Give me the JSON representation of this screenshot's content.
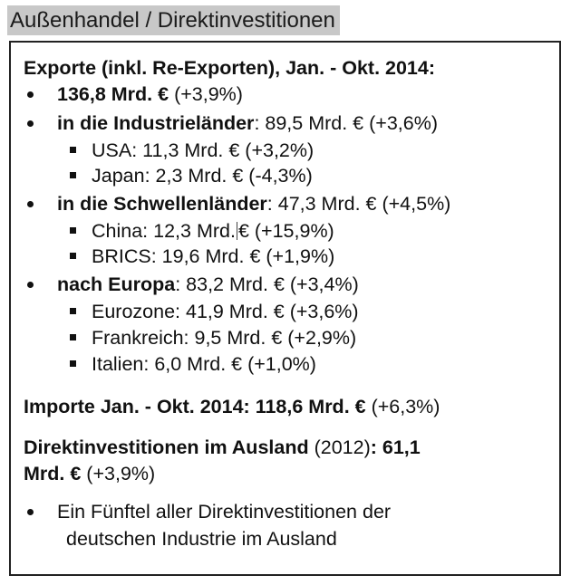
{
  "title": "Außenhandel / Direktinvestitionen",
  "exports": {
    "heading": "Exporte (inkl. Re-Exporten), Jan. - Okt. 2014:",
    "total": {
      "bold": "136,8 Mrd. €",
      "rest": " (+3,9%)"
    },
    "industrial": {
      "bold": "in die Industrieländer",
      "rest": ": 89,5 Mrd. € (+3,6%)",
      "items": [
        "USA: 11,3 Mrd. € (+3,2%)",
        "Japan: 2,3 Mrd. € (-4,3%)"
      ]
    },
    "emerging": {
      "bold": "in die Schwellenländer",
      "rest": ": 47,3 Mrd. € (+4,5%)",
      "china_a": "China: 12,3 Mrd.",
      "china_b": "€ (+15,9%)",
      "brics": "BRICS: 19,6 Mrd. € (+1,9%)"
    },
    "europe": {
      "bold": "nach Europa",
      "rest": ": 83,2 Mrd. € (+3,4%)",
      "items": [
        "Eurozone: 41,9 Mrd. € (+3,6%)",
        "Frankreich: 9,5 Mrd. € (+2,9%)",
        "Italien: 6,0 Mrd. € (+1,0%)"
      ]
    }
  },
  "imports": {
    "bold": "Importe Jan. - Okt. 2014: 118,6 Mrd. €",
    "rest": " (+6,3%)"
  },
  "fdi": {
    "bold_a": "Direktinvestitionen im Ausland",
    "normal_a": " (2012)",
    "bold_b": ": 61,1",
    "bold_c": "Mrd. €",
    "normal_b": " (+3,9%)",
    "note_line1": "Ein Fünftel aller Direktinvestitionen der",
    "note_line2": "deutschen Industrie im Ausland"
  }
}
